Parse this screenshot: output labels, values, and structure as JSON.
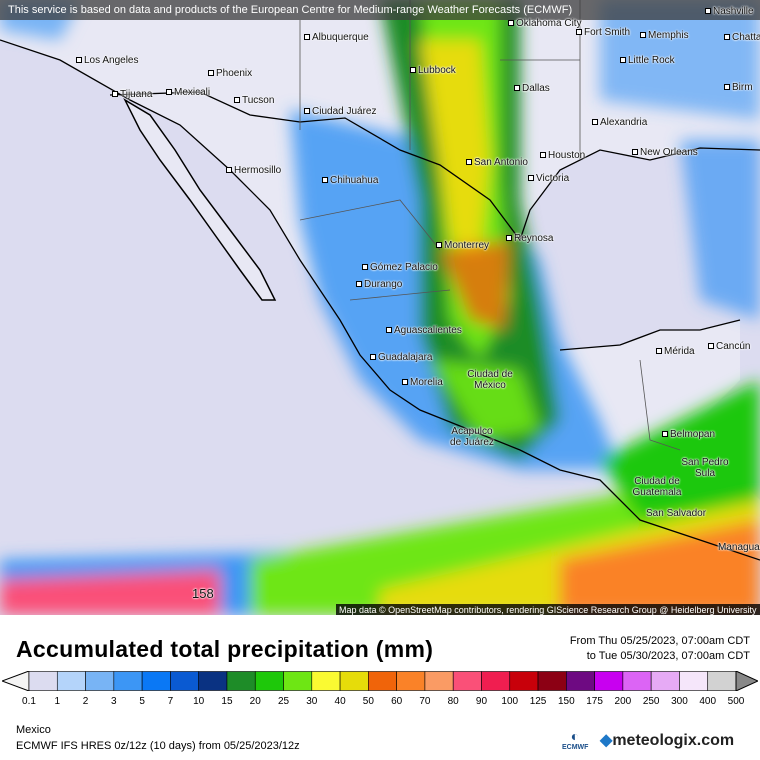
{
  "map": {
    "notice": "This service is based on data and products of the European Centre for Medium-range Weather Forecasts (ECMWF)",
    "attribution": "Map data © OpenStreetMap contributors, rendering GIScience Research Group @ Heidelberg University",
    "cities": [
      "Oklahoma City",
      "Albuquerque",
      "Fort Smith",
      "Memphis",
      "Nashville",
      "Chatta",
      "Lubbock",
      "Little Rock",
      "Los Angeles",
      "Phoenix",
      "Dallas",
      "Birm",
      "Tijuana",
      "Mexicali",
      "Tucson",
      "Ciudad Juárez",
      "Alexandria",
      "Hermosillo",
      "Houston",
      "New Orleans",
      "San Antonio",
      "Chihuahua",
      "Victoria",
      "Reynosa",
      "Monterrey",
      "Gómez Palacio",
      "Durango",
      "Aguascalientes",
      "Guadalajara",
      "Mérida",
      "Cancún",
      "Morelia",
      "Ciudad de México",
      "Acapulco de Juárez",
      "Belmopan",
      "San Pedro Sula",
      "Ciudad de Guatemala",
      "San Salvador",
      "Managua",
      "158"
    ]
  },
  "legend": {
    "title": "Accumulated total precipitation (mm)",
    "from": "From Thu 05/25/2023, 07:00am CDT",
    "to": "to Tue 05/30/2023, 07:00am CDT",
    "ticks": [
      "0.1",
      "1",
      "2",
      "3",
      "5",
      "7",
      "10",
      "15",
      "20",
      "25",
      "30",
      "40",
      "50",
      "60",
      "70",
      "80",
      "90",
      "100",
      "125",
      "150",
      "175",
      "200",
      "250",
      "300",
      "400",
      "500"
    ],
    "colors": [
      "#dcdcf0",
      "#b4d4fa",
      "#78b4f5",
      "#3c96f5",
      "#0a78f5",
      "#0a5ad2",
      "#0a3282",
      "#1e8c28",
      "#1ec80a",
      "#6ee614",
      "#fafa32",
      "#e6dc0a",
      "#f0640a",
      "#fa8228",
      "#fa9b64",
      "#fa5078",
      "#f01e50",
      "#c8000a",
      "#8c0014",
      "#6e0a82",
      "#c800f0",
      "#dc64f5",
      "#e6aaf5",
      "#f5e6fa",
      "#d2d2d2"
    ],
    "region": "Mexico",
    "model": "ECMWF IFS HRES 0z/12z (10 days) from  05/25/2023/12z",
    "ecmwf_logo": "ECMWF",
    "brand": "meteologix.com"
  }
}
